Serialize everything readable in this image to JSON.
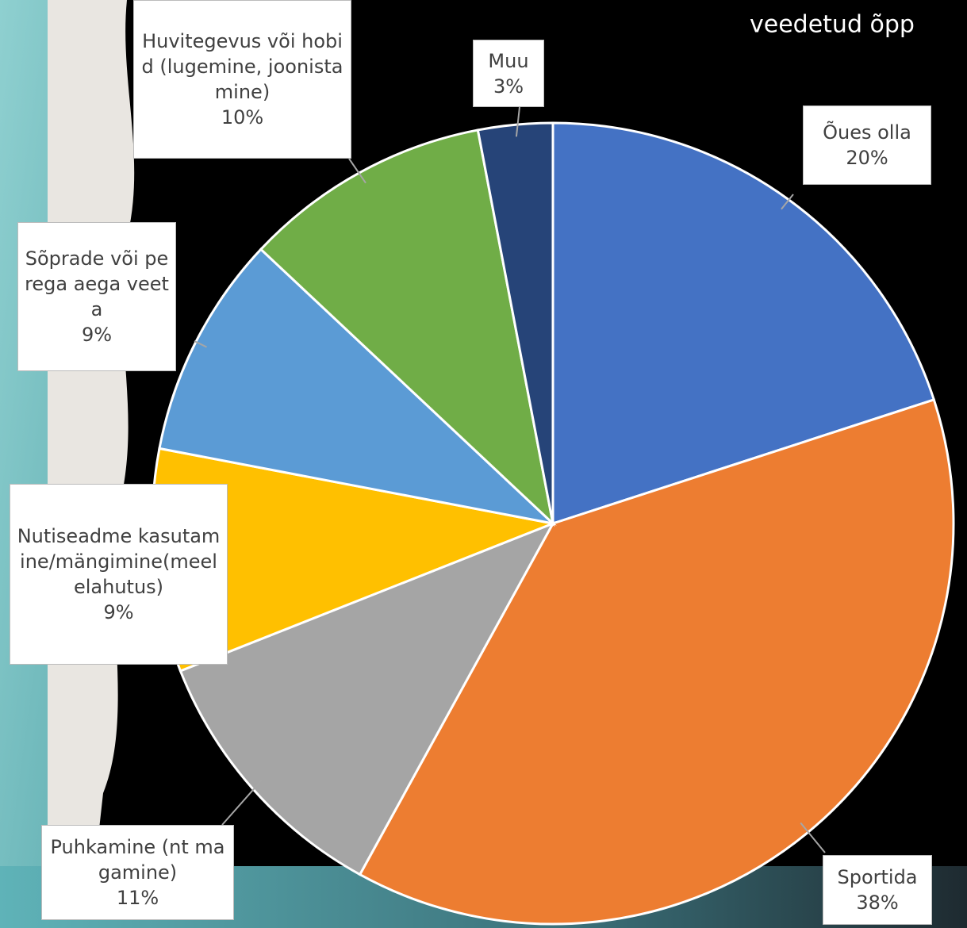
{
  "chart_data": {
    "type": "pie",
    "title": "veedetud õpp",
    "categories": [
      "Õues olla",
      "Sportida",
      "Puhkamine (nt magamine)",
      "Nutiseadme kasutamine/mängimine(meelelahutus)",
      "Sõprade või perega aega veeta",
      "Huvitegevus või hobid (lugemine, joonistamine)",
      "Muu"
    ],
    "values": [
      20,
      38,
      11,
      9,
      9,
      10,
      3
    ],
    "value_labels": [
      "20%",
      "38%",
      "11%",
      "9%",
      "9%",
      "10%",
      "3%"
    ],
    "colors": [
      "#4472c4",
      "#ed7d31",
      "#a5a5a5",
      "#ffc000",
      "#5b9bd5",
      "#70ad47",
      "#264478"
    ]
  }
}
